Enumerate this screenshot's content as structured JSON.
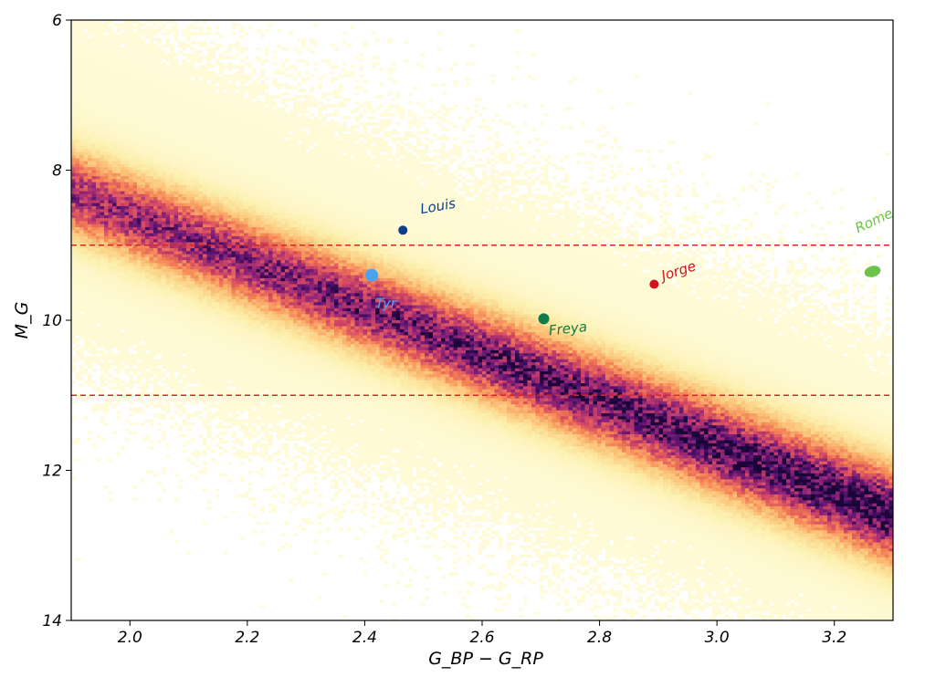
{
  "chart_data": {
    "type": "heatmap",
    "title": "",
    "xlabel": "G_BP − G_RP",
    "ylabel": "M_G",
    "xlim": [
      1.9,
      3.3
    ],
    "ylim": [
      14,
      6
    ],
    "y_inverted": true,
    "xticks": [
      2.0,
      2.2,
      2.4,
      2.6,
      2.8,
      3.0,
      3.2
    ],
    "xtick_labels": [
      "2.0",
      "2.2",
      "2.4",
      "2.6",
      "2.8",
      "3.0",
      "3.2"
    ],
    "yticks": [
      6,
      8,
      10,
      12,
      14
    ],
    "ytick_labels": [
      "6",
      "8",
      "10",
      "12",
      "14"
    ],
    "grid": false,
    "colormap": "magma_r",
    "density_ridge": [
      {
        "x": 1.9,
        "y": 8.3
      },
      {
        "x": 3.3,
        "y": 12.6
      }
    ],
    "reference_lines": [
      {
        "y": 9.0,
        "style": "dashed",
        "color": "#d62728"
      },
      {
        "y": 11.0,
        "style": "dashed",
        "color": "#d62728"
      }
    ],
    "annotations": [
      {
        "label": "Louis",
        "x": 2.465,
        "y": 8.8,
        "color": "#0b3f8c"
      },
      {
        "label": "Tyr",
        "x": 2.412,
        "y": 9.4,
        "color": "#4aa3f0"
      },
      {
        "label": "Freya",
        "x": 2.705,
        "y": 9.98,
        "color": "#137a4a"
      },
      {
        "label": "Jorge",
        "x": 2.893,
        "y": 9.52,
        "color": "#d1121b"
      },
      {
        "label": "Romeo",
        "x": 3.265,
        "y": 9.35,
        "color": "#6cc24a"
      }
    ]
  }
}
